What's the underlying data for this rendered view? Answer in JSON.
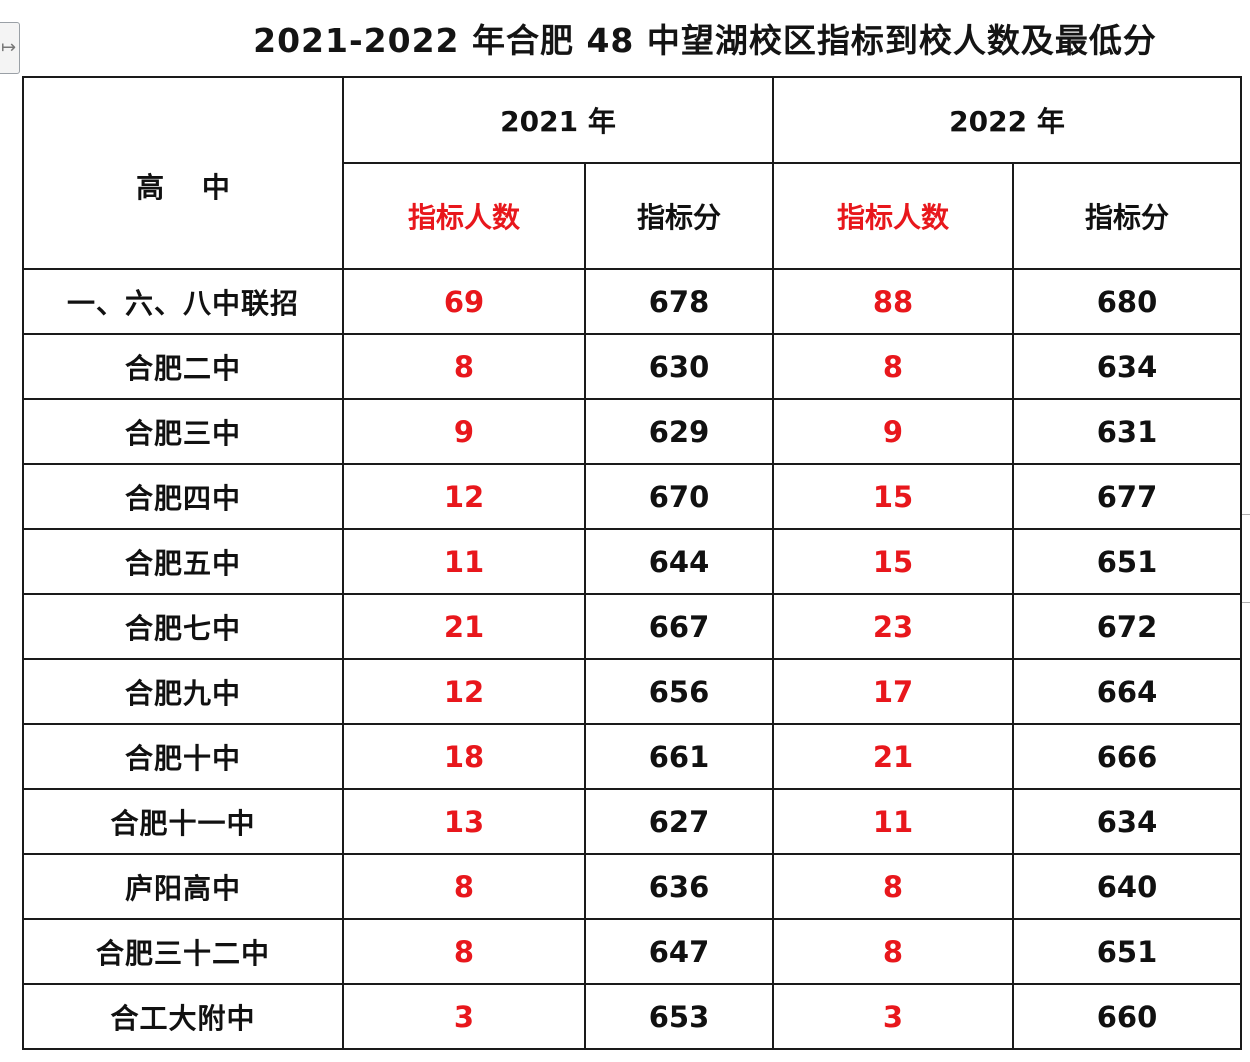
{
  "title": "2021-2022 年合肥 48 中望湖校区指标到校人数及最低分",
  "header": {
    "school_col": "高 中",
    "years": [
      "2021 年",
      "2022 年"
    ],
    "quota_label": "指标人数",
    "score_label": "指标分"
  },
  "rows": [
    {
      "school": "一、六、八中联招",
      "q2021": "69",
      "s2021": "678",
      "q2022": "88",
      "s2022": "680"
    },
    {
      "school": "合肥二中",
      "q2021": "8",
      "s2021": "630",
      "q2022": "8",
      "s2022": "634"
    },
    {
      "school": "合肥三中",
      "q2021": "9",
      "s2021": "629",
      "q2022": "9",
      "s2022": "631"
    },
    {
      "school": "合肥四中",
      "q2021": "12",
      "s2021": "670",
      "q2022": "15",
      "s2022": "677"
    },
    {
      "school": "合肥五中",
      "q2021": "11",
      "s2021": "644",
      "q2022": "15",
      "s2022": "651"
    },
    {
      "school": "合肥七中",
      "q2021": "21",
      "s2021": "667",
      "q2022": "23",
      "s2022": "672"
    },
    {
      "school": "合肥九中",
      "q2021": "12",
      "s2021": "656",
      "q2022": "17",
      "s2022": "664"
    },
    {
      "school": "合肥十中",
      "q2021": "18",
      "s2021": "661",
      "q2022": "21",
      "s2022": "666"
    },
    {
      "school": "合肥十一中",
      "q2021": "13",
      "s2021": "627",
      "q2022": "11",
      "s2022": "634"
    },
    {
      "school": "庐阳高中",
      "q2021": "8",
      "s2021": "636",
      "q2022": "8",
      "s2022": "640"
    },
    {
      "school": "合肥三十二中",
      "q2021": "8",
      "s2021": "647",
      "q2022": "8",
      "s2022": "651"
    },
    {
      "school": "合工大附中",
      "q2021": "3",
      "s2021": "653",
      "q2022": "3",
      "s2022": "660"
    }
  ],
  "colors": {
    "quota_text": "#e8171c",
    "border": "#1a1a1a"
  },
  "icons": {
    "corner_widget": "expand-arrow-icon"
  }
}
